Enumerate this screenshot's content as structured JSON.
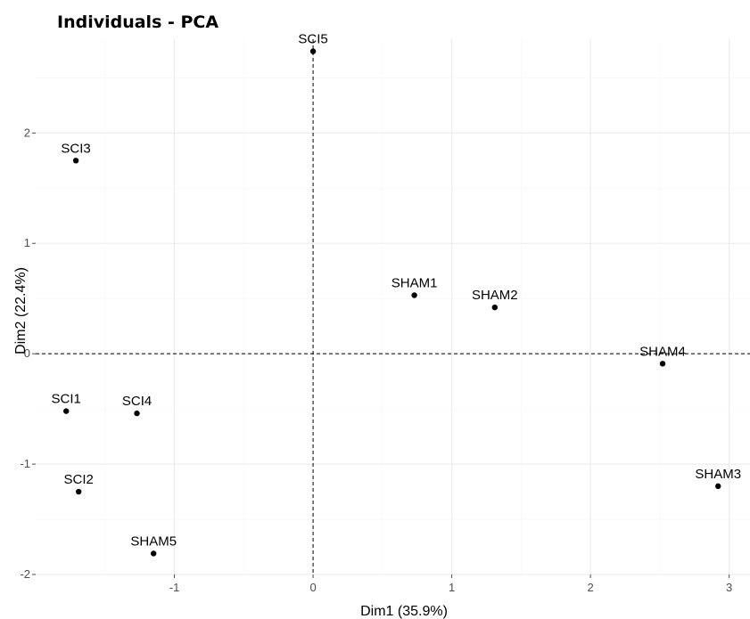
{
  "chart_data": {
    "type": "scatter",
    "title": "Individuals - PCA",
    "xlabel": "Dim1 (35.9%)",
    "ylabel": "Dim2 (22.4%)",
    "xlim": [
      -2.0,
      3.15
    ],
    "ylim": [
      -2.0,
      2.85
    ],
    "x_ticks": [
      -1,
      0,
      1,
      2,
      3
    ],
    "y_ticks": [
      -2,
      -1,
      0,
      1,
      2
    ],
    "x_tick_labels": [
      "-1",
      "0",
      "1",
      "2",
      "3"
    ],
    "y_tick_labels": [
      "-2",
      "-1",
      "0",
      "1",
      "2"
    ],
    "grid": true,
    "reference_lines": {
      "x": 0,
      "y": 0,
      "style": "dashed"
    },
    "point_color": "#000000",
    "points": [
      {
        "label": "SCI5",
        "x": 0.0,
        "y": 2.74
      },
      {
        "label": "SCI3",
        "x": -1.71,
        "y": 1.75
      },
      {
        "label": "SHAM1",
        "x": 0.73,
        "y": 0.53
      },
      {
        "label": "SHAM2",
        "x": 1.31,
        "y": 0.42
      },
      {
        "label": "SHAM4",
        "x": 2.52,
        "y": -0.09
      },
      {
        "label": "SCI1",
        "x": -1.78,
        "y": -0.52
      },
      {
        "label": "SCI4",
        "x": -1.27,
        "y": -0.54
      },
      {
        "label": "SCI2",
        "x": -1.69,
        "y": -1.25
      },
      {
        "label": "SHAM3",
        "x": 2.92,
        "y": -1.2
      },
      {
        "label": "SHAM5",
        "x": -1.15,
        "y": -1.81
      }
    ]
  }
}
